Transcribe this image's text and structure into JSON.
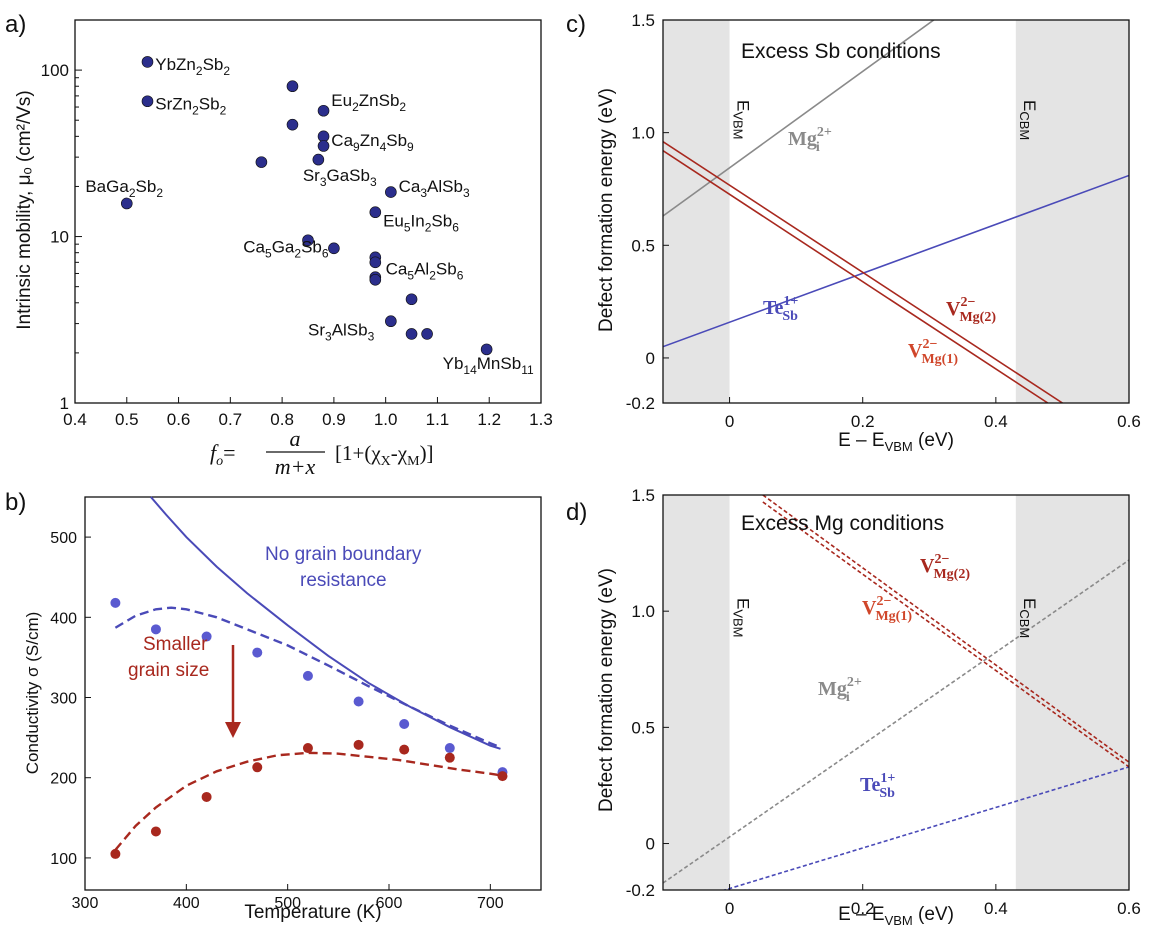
{
  "colors": {
    "marker_navy": "#2b2e8c",
    "blue": "#4a4ab8",
    "red": "#a8281e",
    "orange_red": "#d0462a",
    "gray": "#8a8a8a",
    "band_fill": "#e4e4e4"
  },
  "chart_data": [
    {
      "panel": "a)",
      "type": "scatter",
      "ylabel": "Intrinsic mobility, μₒ (cm²/Vs)",
      "xlabel_formula": {
        "lhs": "f",
        "lhs_sub": "o",
        "eq": "=",
        "num": "a",
        "den": "m+x",
        "rest_open": "[1+(χ",
        "rest_sub1": "X",
        "rest_mid": "-χ",
        "rest_sub2": "M",
        "rest_close": ")]"
      },
      "yscale": "log",
      "xlim": [
        0.4,
        1.3
      ],
      "ylim": [
        1,
        200
      ],
      "xticks": [
        "0.4",
        "0.5",
        "0.6",
        "0.7",
        "0.8",
        "0.9",
        "1.0",
        "1.1",
        "1.2",
        "1.3"
      ],
      "yticks": [
        "1",
        "10",
        "100"
      ],
      "points": [
        {
          "x": 0.54,
          "y": 112
        },
        {
          "x": 0.54,
          "y": 65
        },
        {
          "x": 0.5,
          "y": 15.8
        },
        {
          "x": 0.82,
          "y": 80
        },
        {
          "x": 0.82,
          "y": 47
        },
        {
          "x": 0.88,
          "y": 57
        },
        {
          "x": 0.88,
          "y": 40
        },
        {
          "x": 0.88,
          "y": 35
        },
        {
          "x": 0.87,
          "y": 29
        },
        {
          "x": 0.76,
          "y": 28
        },
        {
          "x": 1.01,
          "y": 18.5
        },
        {
          "x": 0.98,
          "y": 14
        },
        {
          "x": 0.85,
          "y": 9.5
        },
        {
          "x": 0.9,
          "y": 8.5
        },
        {
          "x": 0.98,
          "y": 7.5
        },
        {
          "x": 0.98,
          "y": 7.0
        },
        {
          "x": 0.98,
          "y": 5.7
        },
        {
          "x": 0.98,
          "y": 5.5
        },
        {
          "x": 1.05,
          "y": 4.2
        },
        {
          "x": 1.01,
          "y": 3.1
        },
        {
          "x": 1.05,
          "y": 2.6
        },
        {
          "x": 1.08,
          "y": 2.6
        },
        {
          "x": 1.195,
          "y": 2.1
        }
      ],
      "labels": [
        {
          "x": 0.555,
          "y": 100,
          "base": "YbZn",
          "parts": [
            [
              "2",
              "Sb"
            ],
            [
              "2",
              ""
            ]
          ]
        },
        {
          "x": 0.555,
          "y": 58,
          "base": "SrZn",
          "parts": [
            [
              "2",
              "Sb"
            ],
            [
              "2",
              ""
            ]
          ]
        },
        {
          "x": 0.42,
          "y": 18.5,
          "base": "BaGa",
          "parts": [
            [
              "2",
              "Sb"
            ],
            [
              "2",
              ""
            ]
          ]
        },
        {
          "x": 0.895,
          "y": 61,
          "base": "Eu",
          "parts": [
            [
              "2",
              "ZnSb"
            ],
            [
              "2",
              ""
            ]
          ]
        },
        {
          "x": 0.895,
          "y": 35,
          "base": "Ca",
          "parts": [
            [
              "9",
              "Zn"
            ],
            [
              "4",
              "Sb"
            ],
            [
              "9",
              ""
            ]
          ]
        },
        {
          "x": 0.84,
          "y": 21.5,
          "base": "Sr",
          "parts": [
            [
              "3",
              "GaSb"
            ],
            [
              "3",
              ""
            ]
          ]
        },
        {
          "x": 1.025,
          "y": 18.5,
          "base": "Ca",
          "parts": [
            [
              "3",
              "AlSb"
            ],
            [
              "3",
              ""
            ]
          ]
        },
        {
          "x": 0.995,
          "y": 11.5,
          "base": "Eu",
          "parts": [
            [
              "5",
              "In"
            ],
            [
              "2",
              "Sb"
            ],
            [
              "6",
              ""
            ]
          ]
        },
        {
          "x": 0.725,
          "y": 8.0,
          "base": "Ca",
          "parts": [
            [
              "5",
              "Ga"
            ],
            [
              "2",
              "Sb"
            ],
            [
              "6",
              ""
            ]
          ]
        },
        {
          "x": 1.0,
          "y": 5.9,
          "base": "Ca",
          "parts": [
            [
              "5",
              "Al"
            ],
            [
              "2",
              "Sb"
            ],
            [
              "6",
              ""
            ]
          ]
        },
        {
          "x": 0.85,
          "y": 2.55,
          "base": "Sr",
          "parts": [
            [
              "3",
              "AlSb"
            ],
            [
              "3",
              ""
            ]
          ]
        },
        {
          "x": 1.11,
          "y": 1.6,
          "base": "Yb",
          "parts": [
            [
              "14",
              "MnSb"
            ],
            [
              "11",
              ""
            ]
          ]
        }
      ]
    },
    {
      "panel": "b)",
      "type": "line",
      "xlabel": "Temperature (K)",
      "ylabel": "Conductivity σ (S/cm)",
      "xlim": [
        300,
        750
      ],
      "ylim": [
        60,
        550
      ],
      "xticks": [
        "300",
        "400",
        "500",
        "600",
        "700"
      ],
      "yticks": [
        "100",
        "200",
        "300",
        "400",
        "500"
      ],
      "series": [
        {
          "style": "solid",
          "color": "blue",
          "x": [
            365,
            380,
            400,
            430,
            460,
            500,
            540,
            580,
            620,
            660,
            700,
            710
          ],
          "y": [
            550,
            528,
            500,
            463,
            430,
            390,
            352,
            318,
            289,
            263,
            240,
            236
          ]
        },
        {
          "style": "dashed",
          "color": "blue",
          "x": [
            330,
            350,
            370,
            385,
            400,
            430,
            460,
            500,
            540,
            580,
            620,
            660,
            700,
            710
          ],
          "y": [
            387,
            402,
            410,
            412,
            410,
            400,
            385,
            365,
            340,
            314,
            289,
            265,
            243,
            238
          ]
        },
        {
          "style": "dashed",
          "color": "red",
          "x": [
            330,
            350,
            370,
            400,
            430,
            460,
            490,
            520,
            550,
            580,
            610,
            640,
            670,
            700,
            710
          ],
          "y": [
            110,
            140,
            163,
            190,
            208,
            220,
            228,
            231,
            230,
            226,
            222,
            216,
            210,
            205,
            203
          ]
        },
        {
          "style": "points",
          "color": "blue",
          "x": [
            330,
            370,
            420,
            470,
            520,
            570,
            615,
            660,
            712
          ],
          "y": [
            418,
            385,
            376,
            356,
            327,
            295,
            267,
            237,
            207
          ]
        },
        {
          "style": "points",
          "color": "red",
          "x": [
            330,
            370,
            420,
            470,
            520,
            570,
            615,
            660,
            712
          ],
          "y": [
            105,
            133,
            176,
            213,
            237,
            241,
            235,
            225,
            202
          ]
        }
      ],
      "annotations": {
        "no_gb_line1": "No grain boundary",
        "no_gb_line2": "resistance",
        "smaller_line1": "Smaller",
        "smaller_line2": "grain size"
      }
    },
    {
      "panel": "c)",
      "type": "line",
      "title": "Excess Sb conditions",
      "xlabel": "E – E",
      "xlabel_sub": "VBM",
      "xlabel_unit": " (eV)",
      "ylabel": "Defect formation energy (eV)",
      "xlim": [
        -0.1,
        0.6
      ],
      "ylim": [
        -0.2,
        1.5
      ],
      "xticks": [
        "0",
        "0.2",
        "0.4",
        "0.6"
      ],
      "yticks": [
        "-0.2",
        "0",
        "0.5",
        "1.0",
        "1.5"
      ],
      "bands": [
        [
          -0.1,
          0
        ],
        [
          0.43,
          0.6
        ]
      ],
      "band_labels": [
        {
          "base": "E",
          "sub": "VBM"
        },
        {
          "base": "E",
          "sub": "CBM"
        }
      ],
      "series": [
        {
          "color": "gray",
          "style": "solid",
          "x": [
            -0.1,
            0.33
          ],
          "y": [
            0.63,
            1.55
          ]
        },
        {
          "color": "blue",
          "style": "solid",
          "x": [
            -0.1,
            0.6
          ],
          "y": [
            0.05,
            0.81
          ]
        },
        {
          "color": "red",
          "style": "solid",
          "x": [
            -0.1,
            0.478
          ],
          "y": [
            0.92,
            -0.2
          ]
        },
        {
          "color": "red",
          "style": "solid",
          "x": [
            -0.1,
            0.5
          ],
          "y": [
            0.96,
            -0.2
          ]
        }
      ],
      "labels": [
        {
          "base": "Mg",
          "sub": "i",
          "sup": "2+",
          "color": "gray"
        },
        {
          "base": "Te",
          "sub": "Sb",
          "sup": "1+",
          "color": "blue"
        },
        {
          "base": "V",
          "sub": "Mg(2)",
          "sup": "2−",
          "color": "red"
        },
        {
          "base": "V",
          "sub": "Mg(1)",
          "sup": "2−",
          "color": "orange_red"
        }
      ]
    },
    {
      "panel": "d)",
      "type": "line",
      "title": "Excess Mg conditions",
      "xlabel": "E – E",
      "xlabel_sub": "VBM",
      "xlabel_unit": " (eV)",
      "ylabel": "Defect formation energy (eV)",
      "xlim": [
        -0.1,
        0.6
      ],
      "ylim": [
        -0.2,
        1.5
      ],
      "xticks": [
        "0",
        "0.2",
        "0.4",
        "0.6"
      ],
      "yticks": [
        "-0.2",
        "0",
        "0.5",
        "1.0",
        "1.5"
      ],
      "bands": [
        [
          -0.1,
          0
        ],
        [
          0.43,
          0.6
        ]
      ],
      "band_labels": [
        {
          "base": "E",
          "sub": "VBM"
        },
        {
          "base": "E",
          "sub": "CBM"
        }
      ],
      "series": [
        {
          "color": "gray",
          "style": "dashed",
          "x": [
            -0.1,
            0.6
          ],
          "y": [
            -0.17,
            1.22
          ]
        },
        {
          "color": "blue",
          "style": "dashed",
          "x": [
            -0.03,
            0.6
          ],
          "y": [
            -0.22,
            0.33
          ]
        },
        {
          "color": "red",
          "style": "dashed",
          "x": [
            0.05,
            0.6
          ],
          "y": [
            1.5,
            0.35
          ]
        },
        {
          "color": "red",
          "style": "dashed",
          "x": [
            0.05,
            0.6
          ],
          "y": [
            1.47,
            0.33
          ]
        }
      ],
      "labels": [
        {
          "base": "Mg",
          "sub": "i",
          "sup": "2+",
          "color": "gray"
        },
        {
          "base": "Te",
          "sub": "Sb",
          "sup": "1+",
          "color": "blue"
        },
        {
          "base": "V",
          "sub": "Mg(2)",
          "sup": "2−",
          "color": "red"
        },
        {
          "base": "V",
          "sub": "Mg(1)",
          "sup": "2−",
          "color": "orange_red"
        }
      ]
    }
  ]
}
